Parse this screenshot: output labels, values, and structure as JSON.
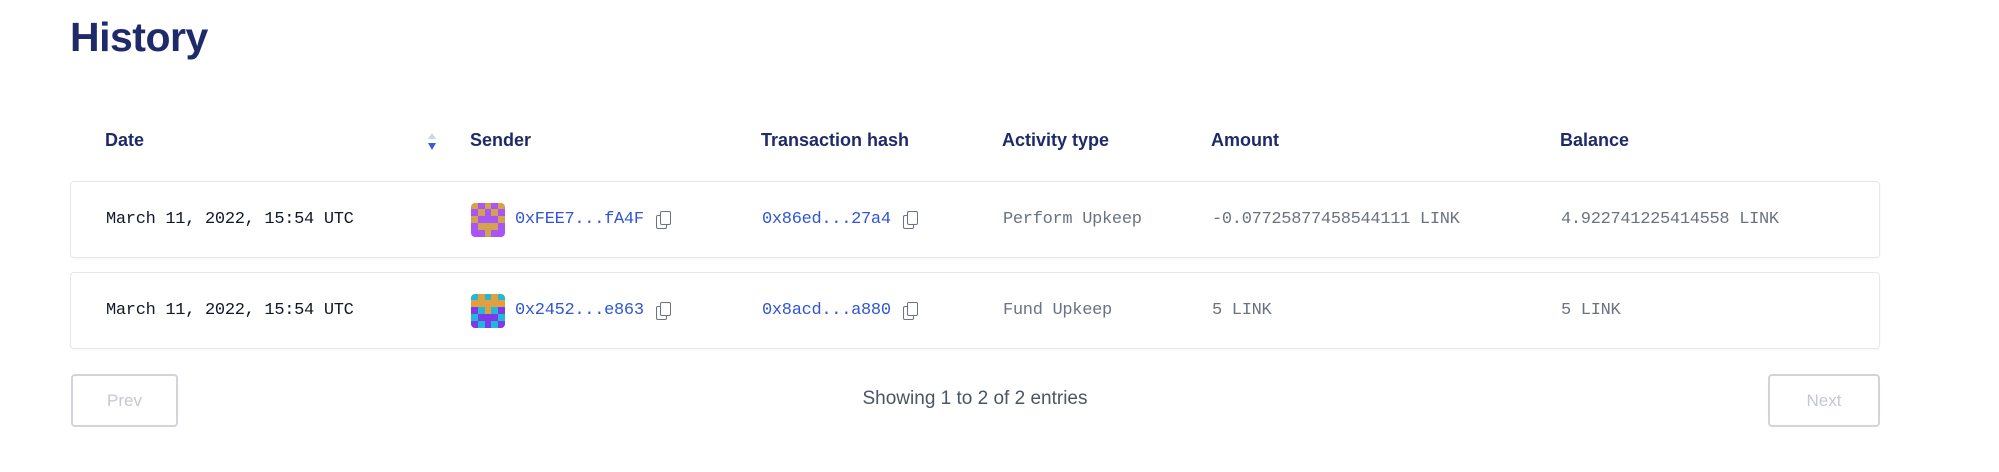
{
  "page": {
    "title": "History"
  },
  "table": {
    "columns": [
      "Date",
      "Sender",
      "Transaction hash",
      "Activity type",
      "Amount",
      "Balance"
    ],
    "sort": {
      "column": "Date",
      "direction": "descending"
    },
    "rows": [
      {
        "date": "March 11, 2022, 15:54 UTC",
        "sender": "0xFEE7...fA4F",
        "tx_hash": "0x86ed...27a4",
        "activity": "Perform Upkeep",
        "amount": "-0.07725877458544111 LINK",
        "balance": "4.922741225414558 LINK",
        "avatar_colors": [
          "#d4a24c",
          "#a855f7"
        ]
      },
      {
        "date": "March 11, 2022, 15:54 UTC",
        "sender": "0x2452...e863",
        "tx_hash": "0x8acd...a880",
        "activity": "Fund Upkeep",
        "amount": "5 LINK",
        "balance": "5 LINK",
        "avatar_colors": [
          "#e0a040",
          "#22b8d8",
          "#7c3aed"
        ]
      }
    ]
  },
  "pagination": {
    "prev_label": "Prev",
    "next_label": "Next",
    "info": "Showing 1 to 2 of 2 entries"
  },
  "colors": {
    "heading": "#1f2a6b",
    "link": "#2f55d4",
    "text_muted": "#6b7280"
  },
  "icons": {
    "sort": "sort-desc-icon",
    "copy": "copy-icon",
    "avatar": "identicon"
  }
}
